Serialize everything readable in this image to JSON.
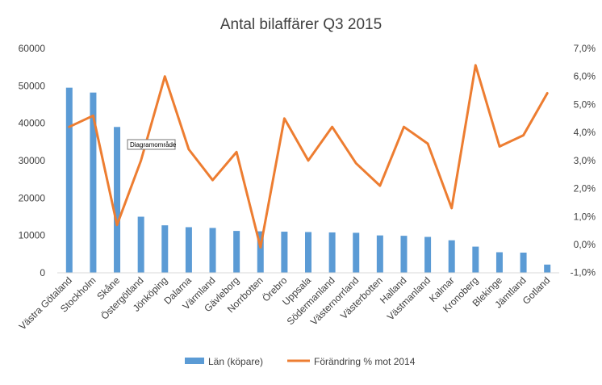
{
  "chart_data": {
    "type": "bar",
    "title": "Antal bilaffärer Q3 2015",
    "categories": [
      "Västra Götaland",
      "Stockholm",
      "Skåne",
      "Östergötland",
      "Jönköping",
      "Dalarna",
      "Värmland",
      "Gävleborg",
      "Norrbotten",
      "Örebro",
      "Uppsala",
      "Södermanland",
      "Västernorrland",
      "Västerbotten",
      "Halland",
      "Västmanland",
      "Kalmar",
      "Kronoberg",
      "Blekinge",
      "Jämtland",
      "Gotland"
    ],
    "series": [
      {
        "name": "Län (köpare)",
        "type": "bar",
        "axis": "left",
        "color": "#5b9bd5",
        "values": [
          49500,
          48200,
          39000,
          15000,
          12700,
          12200,
          12000,
          11200,
          11100,
          11000,
          10900,
          10800,
          10700,
          10000,
          9900,
          9600,
          8700,
          7000,
          5500,
          5400,
          2200
        ]
      },
      {
        "name": "Förändring % mot 2014",
        "type": "line",
        "axis": "right",
        "color": "#ed7d31",
        "values": [
          4.2,
          4.6,
          0.7,
          3.0,
          6.0,
          3.4,
          2.3,
          3.3,
          -0.1,
          4.5,
          3.0,
          4.2,
          2.9,
          2.1,
          4.2,
          3.6,
          1.3,
          6.4,
          3.5,
          3.9,
          5.4
        ]
      }
    ],
    "y_left": {
      "ylim": [
        0,
        60000
      ],
      "ticks": [
        0,
        10000,
        20000,
        30000,
        40000,
        50000,
        60000
      ],
      "tick_labels": [
        "0",
        "10000",
        "20000",
        "30000",
        "40000",
        "50000",
        "60000"
      ]
    },
    "y_right": {
      "ylim": [
        -1.0,
        7.0
      ],
      "ticks": [
        -1,
        0,
        1,
        2,
        3,
        4,
        5,
        6,
        7
      ],
      "tick_labels": [
        "-1,0%",
        "0,0%",
        "1,0%",
        "2,0%",
        "3,0%",
        "4,0%",
        "5,0%",
        "6,0%",
        "7,0%"
      ]
    },
    "grid": false,
    "legend_position": "bottom",
    "tooltip": "Diagramområde"
  }
}
